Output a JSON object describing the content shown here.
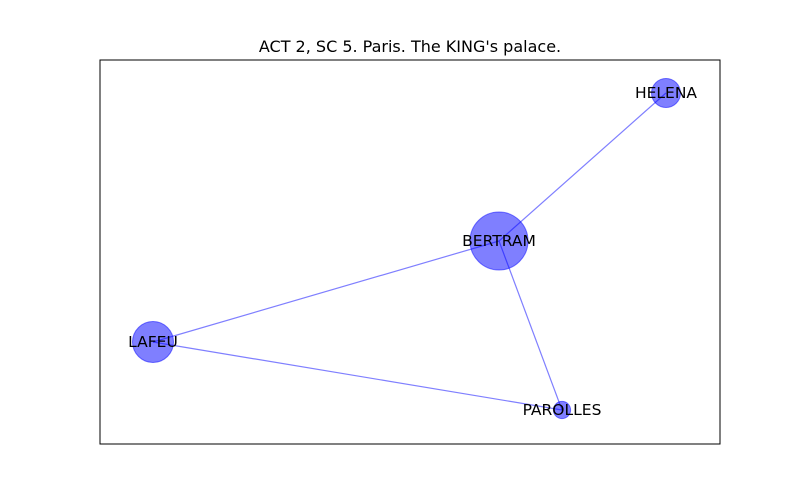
{
  "title": "ACT 2, SC 5. Paris. The KING's palace.",
  "colors": {
    "node_fill": "#0000ff",
    "node_opacity": 0.5,
    "edge": "#0000ff",
    "edge_opacity": 0.5,
    "frame": "#000000",
    "label": "#000000"
  },
  "nodes": [
    {
      "id": "HELENA",
      "label": "HELENA",
      "size": 1
    },
    {
      "id": "BERTRAM",
      "label": "BERTRAM",
      "size": 4
    },
    {
      "id": "LAFEU",
      "label": "LAFEU",
      "size": 2
    },
    {
      "id": "PAROLLES",
      "label": "PAROLLES",
      "size": 0.35
    }
  ],
  "edges": [
    {
      "source": "BERTRAM",
      "target": "HELENA"
    },
    {
      "source": "BERTRAM",
      "target": "LAFEU"
    },
    {
      "source": "BERTRAM",
      "target": "PAROLLES"
    },
    {
      "source": "LAFEU",
      "target": "PAROLLES"
    }
  ]
}
